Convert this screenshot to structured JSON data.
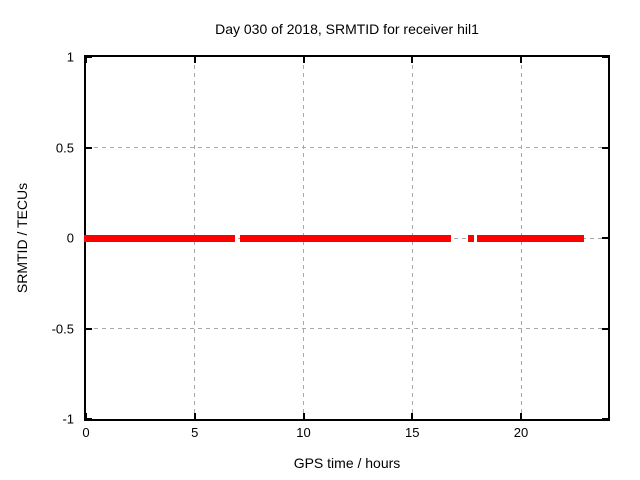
{
  "chart_data": {
    "type": "scatter",
    "title": "Day 030 of 2018, SRMTID for receiver hil1",
    "xlabel": "GPS time / hours",
    "ylabel": "SRMTID / TECUs",
    "xlim": [
      0,
      24
    ],
    "ylim": [
      -1,
      1
    ],
    "xticks": [
      {
        "value": 0,
        "label": "0"
      },
      {
        "value": 5,
        "label": "5"
      },
      {
        "value": 10,
        "label": "10"
      },
      {
        "value": 15,
        "label": "15"
      },
      {
        "value": 20,
        "label": "20"
      }
    ],
    "yticks": [
      {
        "value": -1,
        "label": "-1"
      },
      {
        "value": -0.5,
        "label": "-0.5"
      },
      {
        "value": 0,
        "label": "0"
      },
      {
        "value": 0.5,
        "label": "0.5"
      },
      {
        "value": 1,
        "label": "1"
      }
    ],
    "grid": true,
    "grid_color": "#a8a8a8",
    "border_color": "#000000",
    "background_color": "#ffffff",
    "legend": "none",
    "series": [
      {
        "name": "SRMTID",
        "color": "#ff0000",
        "y_value": 0,
        "band_thickness_px": 7,
        "marker_halfwidth_px": 2,
        "segments_x_hours": [
          [
            0,
            6.78
          ],
          [
            7.17,
            16.7
          ],
          [
            17.65,
            17.75
          ],
          [
            18.05,
            22.8
          ]
        ]
      }
    ]
  }
}
